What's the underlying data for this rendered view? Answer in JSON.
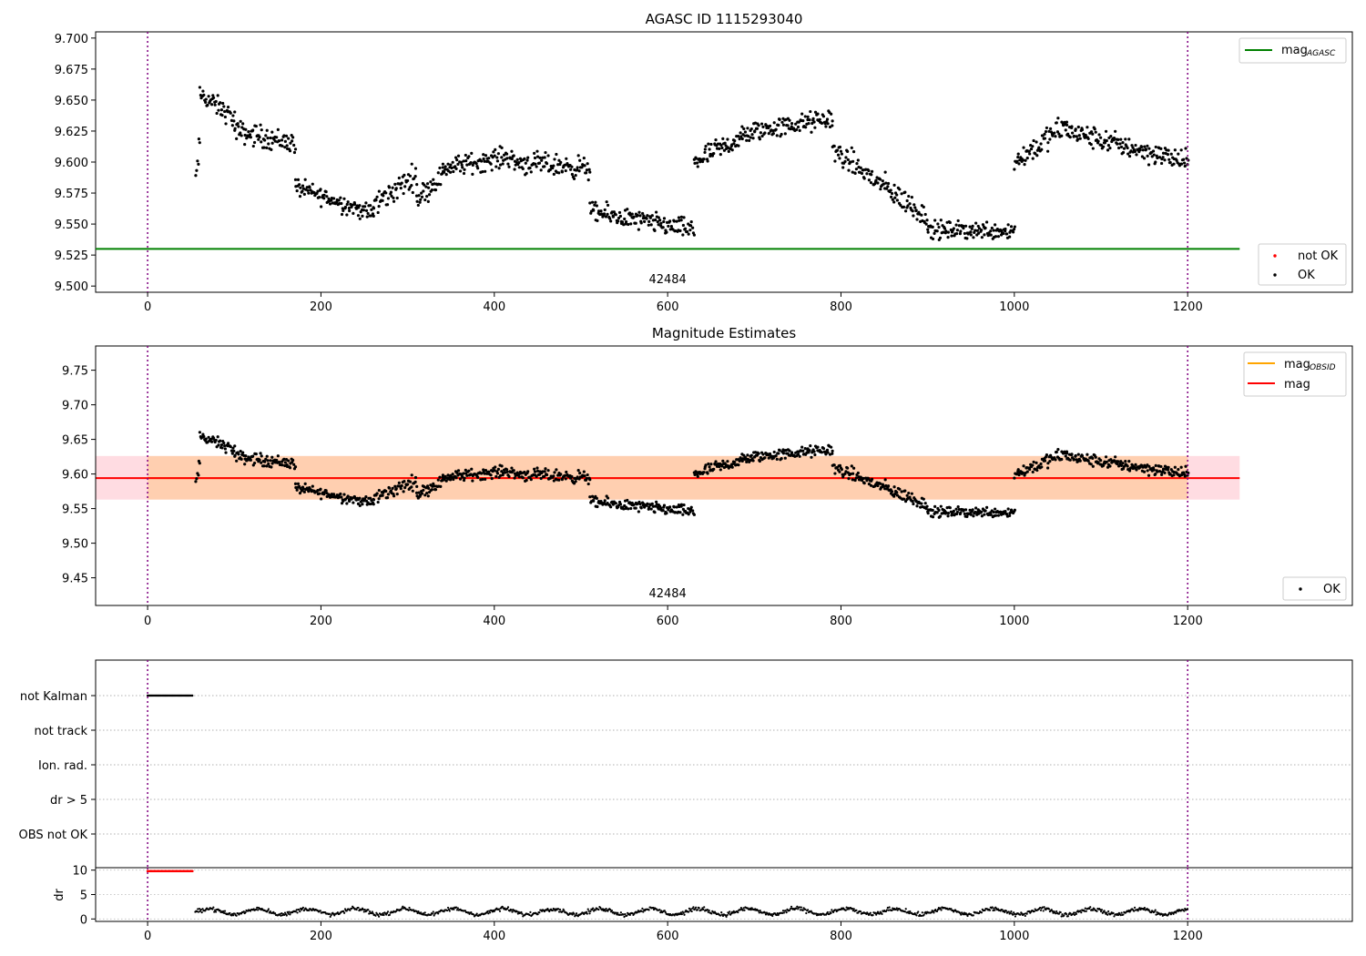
{
  "chart_data": [
    {
      "type": "scatter",
      "title": "AGASC ID 1115293040",
      "xlim": [
        -60,
        1390
      ],
      "ylim": [
        9.495,
        9.705
      ],
      "x_ticks": [
        0,
        200,
        400,
        600,
        800,
        1000,
        1200
      ],
      "y_ticks": [
        9.5,
        9.525,
        9.55,
        9.575,
        9.6,
        9.625,
        9.65,
        9.675,
        9.7
      ],
      "y_tick_labels": [
        "9.500",
        "9.525",
        "9.550",
        "9.575",
        "9.600",
        "9.625",
        "9.650",
        "9.675",
        "9.700"
      ],
      "vlines": [
        0,
        1200
      ],
      "mag_agasc": 9.53,
      "obsid_label": "42484",
      "obsid_label_x": 600,
      "legend_top": {
        "label": "mag",
        "subscript": "AGASC",
        "color": "#008000"
      },
      "legend_bottom": [
        {
          "label": "not OK",
          "color": "#ff0000"
        },
        {
          "label": "OK",
          "color": "#000000"
        }
      ],
      "series_description": "OK points (black); piecewise trend segments [x_start, x_end, y_start, y_end, scatter]",
      "trend_segments": [
        [
          55,
          60,
          9.585,
          9.615,
          0.012
        ],
        [
          60,
          100,
          9.655,
          9.635,
          0.01
        ],
        [
          100,
          170,
          9.625,
          9.615,
          0.011
        ],
        [
          170,
          260,
          9.58,
          9.558,
          0.009
        ],
        [
          260,
          310,
          9.565,
          9.59,
          0.012
        ],
        [
          310,
          340,
          9.57,
          9.59,
          0.011
        ],
        [
          340,
          420,
          9.595,
          9.605,
          0.01
        ],
        [
          420,
          510,
          9.6,
          9.595,
          0.011
        ],
        [
          510,
          630,
          9.56,
          9.545,
          0.01
        ],
        [
          630,
          700,
          9.6,
          9.625,
          0.011
        ],
        [
          700,
          790,
          9.625,
          9.635,
          0.01
        ],
        [
          790,
          900,
          9.61,
          9.555,
          0.012
        ],
        [
          900,
          1000,
          9.545,
          9.545,
          0.009
        ],
        [
          1000,
          1060,
          9.6,
          9.63,
          0.012
        ],
        [
          1060,
          1200,
          9.625,
          9.6,
          0.011
        ]
      ],
      "x_range_points": [
        55,
        1200
      ]
    },
    {
      "type": "scatter",
      "title": "Magnitude Estimates",
      "xlim": [
        -60,
        1390
      ],
      "ylim": [
        9.41,
        9.785
      ],
      "x_ticks": [
        0,
        200,
        400,
        600,
        800,
        1000,
        1200
      ],
      "y_ticks": [
        9.45,
        9.5,
        9.55,
        9.6,
        9.65,
        9.7,
        9.75
      ],
      "y_tick_labels": [
        "9.45",
        "9.50",
        "9.55",
        "9.60",
        "9.65",
        "9.70",
        "9.75"
      ],
      "vlines": [
        0,
        1200
      ],
      "mag": 9.594,
      "mag_band": [
        9.563,
        9.626
      ],
      "mag_obsid": 9.594,
      "mag_obsid_band": [
        9.563,
        9.626
      ],
      "obsid_label": "42484",
      "obsid_label_x": 600,
      "legend_top": [
        {
          "label": "mag",
          "subscript": "OBSID",
          "color": "#ffa500"
        },
        {
          "label": "mag",
          "subscript": "",
          "color": "#ff0000"
        }
      ],
      "legend_bottom": [
        {
          "label": "OK",
          "color": "#000000"
        }
      ]
    },
    {
      "type": "scatter",
      "title": "",
      "xlim": [
        -60,
        1390
      ],
      "categories": [
        "not Kalman",
        "not track",
        "Ion. rad.",
        "dr > 5",
        "OBS not OK"
      ],
      "flags": {
        "not Kalman": [
          0,
          52
        ]
      },
      "vlines": [
        0,
        1200
      ]
    },
    {
      "type": "scatter",
      "title": "",
      "ylabel": "dr",
      "xlim": [
        -60,
        1390
      ],
      "ylim": [
        -0.5,
        10.5
      ],
      "y_ticks": [
        0,
        5,
        10
      ],
      "y_tick_labels": [
        "0",
        "5",
        "10"
      ],
      "x_ticks": [
        0,
        200,
        400,
        600,
        800,
        1000,
        1200
      ],
      "red_points_range": [
        0,
        52
      ],
      "red_points_value": 9.8,
      "black_points_range": [
        55,
        1200
      ],
      "black_points_mean": 1.5,
      "vlines": [
        0,
        1200
      ]
    }
  ]
}
